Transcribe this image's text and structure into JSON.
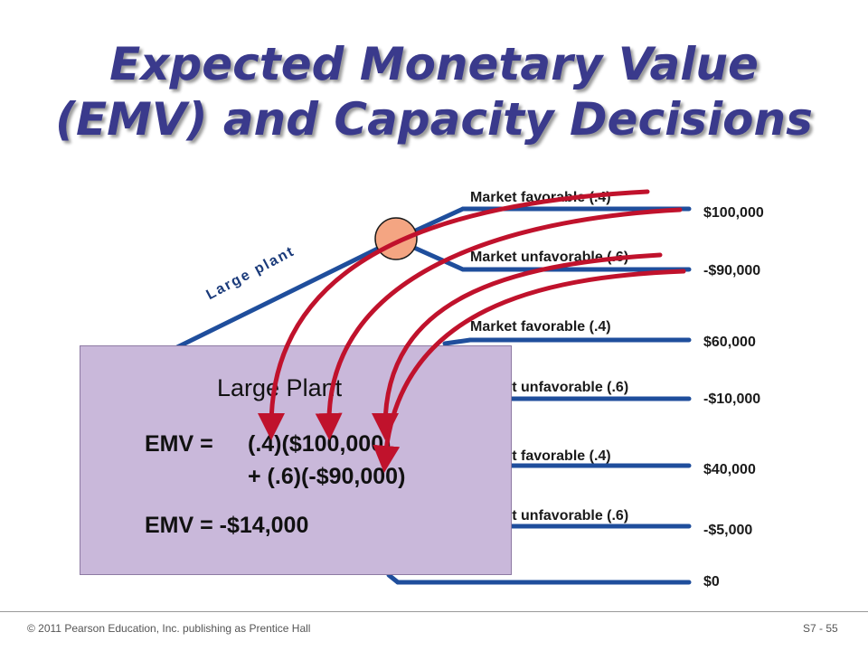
{
  "title": {
    "line1": "Expected Monetary Value",
    "line2": "(EMV) and Capacity Decisions"
  },
  "tree": {
    "branch_label": "Large plant",
    "outcomes": [
      {
        "label": "Market favorable (.4)",
        "value": "$100,000"
      },
      {
        "label": "Market unfavorable (.6)",
        "value": "-$90,000"
      },
      {
        "label": "Market favorable (.4)",
        "value": "$60,000"
      },
      {
        "label": "Market unfavorable (.6)",
        "value": "-$10,000"
      },
      {
        "label": "Market favorable (.4)",
        "value": "$40,000"
      },
      {
        "label": "Market unfavorable (.6)",
        "value": "-$5,000"
      },
      {
        "label": "",
        "value": "$0"
      }
    ],
    "colors": {
      "branch": "#1f4e9c",
      "node": "#f4a582",
      "arrow": "#c0122c",
      "box": "#c9b8da"
    }
  },
  "emv_box": {
    "heading": "Large Plant",
    "line1_prefix": "EMV =",
    "line1_formula": "(.4)($100,000)",
    "line2_formula": "+ (.6)(-$90,000)",
    "result": "EMV = -$14,000"
  },
  "footer": {
    "copyright": "© 2011 Pearson Education, Inc. publishing as Prentice Hall",
    "page": "S7 - 55"
  }
}
